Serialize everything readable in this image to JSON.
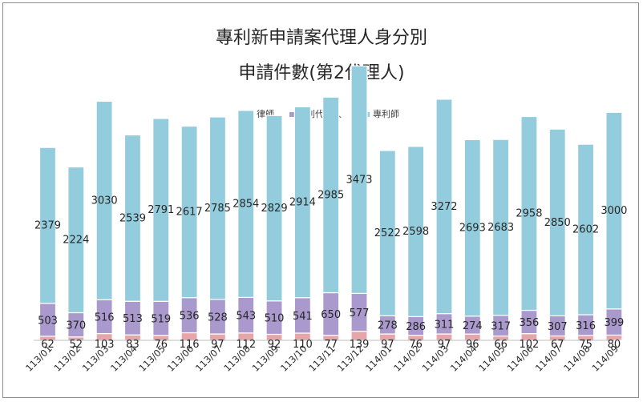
{
  "chart_data": {
    "type": "bar",
    "stacked": true,
    "title": "專利新申請案代理人身分別",
    "subtitle": "申請件數(第2代理人)",
    "categories": [
      "113/01",
      "113/02",
      "113/03",
      "113/04",
      "113/05",
      "113/06",
      "113/07",
      "113/08",
      "113/09",
      "113/10",
      "113/11",
      "113/12",
      "114/01",
      "114/02",
      "114/03",
      "114/04",
      "114/05",
      "114/06",
      "114/07",
      "114/08",
      "114/09"
    ],
    "series": [
      {
        "name": "律師",
        "color": "#e6a5a8",
        "values": [
          62,
          52,
          103,
          83,
          76,
          116,
          97,
          112,
          92,
          110,
          77,
          139,
          97,
          76,
          97,
          96,
          66,
          102,
          67,
          75,
          80
        ]
      },
      {
        "name": "專利代理人",
        "color": "#aa99cc",
        "values": [
          503,
          370,
          516,
          513,
          519,
          536,
          528,
          543,
          510,
          541,
          650,
          577,
          278,
          286,
          311,
          274,
          317,
          356,
          307,
          316,
          399
        ]
      },
      {
        "name": "專利師",
        "color": "#93cddd",
        "values": [
          2379,
          2224,
          3030,
          2539,
          2791,
          2617,
          2785,
          2854,
          2829,
          2914,
          2985,
          3473,
          2522,
          2598,
          3272,
          2693,
          2683,
          2958,
          2850,
          2602,
          3000
        ]
      }
    ],
    "legend_position": "top",
    "grid": false,
    "ylim": [
      0,
      4400
    ]
  }
}
